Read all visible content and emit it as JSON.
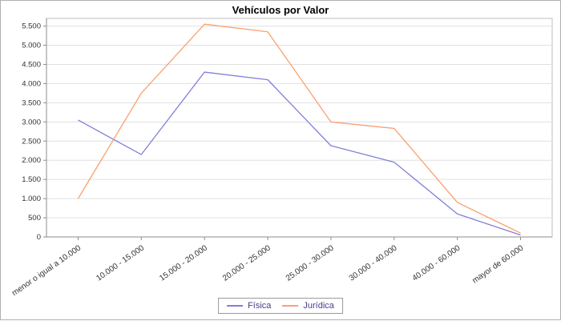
{
  "chart_data": {
    "type": "line",
    "title": "Vehículos por Valor",
    "categories": [
      "menor o igual a 10.000",
      "10.000 - 15.000",
      "15.000 - 20.000",
      "20.000 - 25.000",
      "25.000 - 30.000",
      "30.000 - 40.000",
      "40.000 - 60.000",
      "mayor de 60.000"
    ],
    "series": [
      {
        "name": "Física",
        "color": "#8080d8",
        "values": [
          3050,
          2150,
          4300,
          4100,
          2380,
          1950,
          600,
          50
        ]
      },
      {
        "name": "Jurídica",
        "color": "#f9a171",
        "values": [
          1000,
          3750,
          5550,
          5350,
          3000,
          2830,
          900,
          100
        ]
      }
    ],
    "ylim": [
      0,
      5700
    ],
    "ytick_step": 500,
    "ytick_labels": [
      "0",
      "500",
      "1.000",
      "1.500",
      "2.000",
      "2.500",
      "3.000",
      "3.500",
      "4.000",
      "4.500",
      "5.000",
      "5.500"
    ],
    "grid": "horizontal",
    "legend_position": "bottom",
    "style": {
      "gridline_color": "#e0e0e0",
      "plot_border_color": "#bdbdbd",
      "axis_color": "#8c8c8c",
      "tick_label_color": "#333333",
      "legend_label_color": "#4a3c8c",
      "outer_border_color": "#b0b0b0"
    }
  }
}
